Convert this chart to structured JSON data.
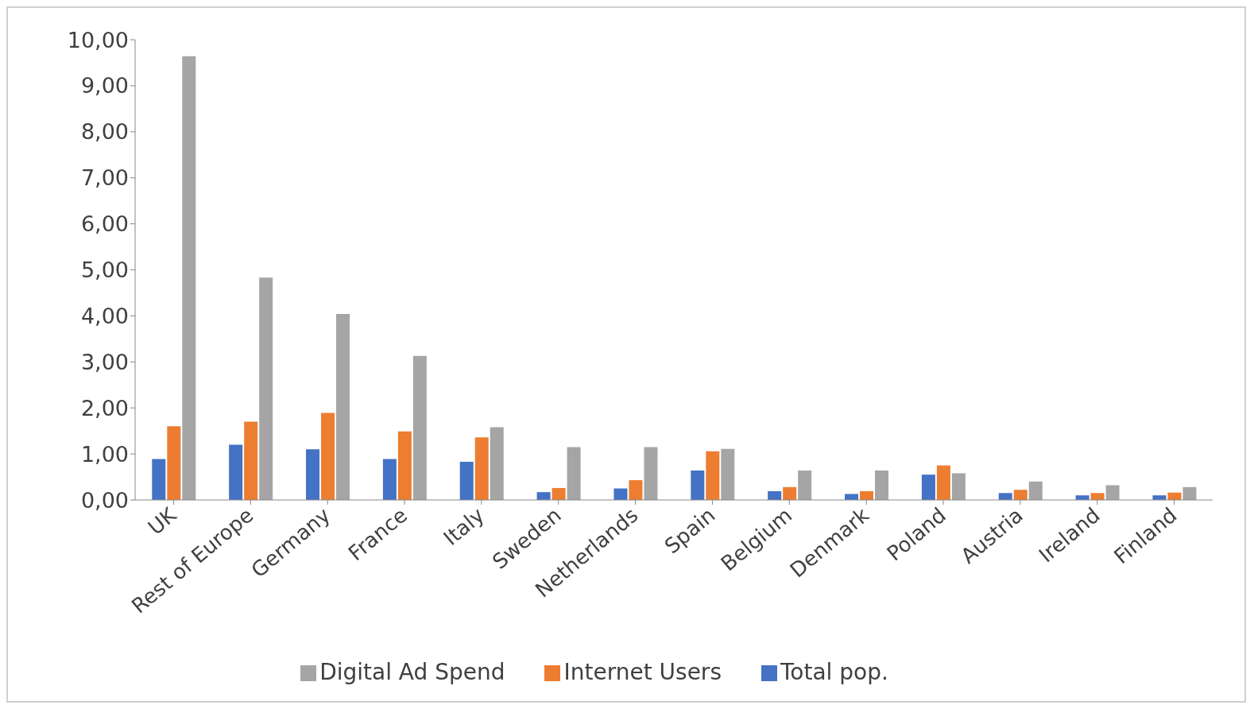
{
  "chart_data": {
    "type": "bar",
    "categories": [
      "UK",
      "Rest of Europe",
      "Germany",
      "France",
      "Italy",
      "Sweden",
      "Netherlands",
      "Spain",
      "Belgium",
      "Denmark",
      "Poland",
      "Austria",
      "Ireland",
      "Finland"
    ],
    "series": [
      {
        "name": "Total pop.",
        "color": "#4472c4",
        "values": [
          0.89,
          1.2,
          1.1,
          0.89,
          0.83,
          0.17,
          0.25,
          0.64,
          0.19,
          0.13,
          0.55,
          0.15,
          0.1,
          0.1
        ]
      },
      {
        "name": "Internet Users",
        "color": "#ed7d31",
        "values": [
          1.6,
          1.7,
          1.89,
          1.49,
          1.36,
          0.26,
          0.43,
          1.06,
          0.28,
          0.19,
          0.75,
          0.22,
          0.15,
          0.16
        ]
      },
      {
        "name": "Digital Ad Spend",
        "color": "#a5a5a5",
        "values": [
          9.64,
          4.83,
          4.04,
          3.13,
          1.58,
          1.15,
          1.15,
          1.11,
          0.64,
          0.64,
          0.58,
          0.4,
          0.32,
          0.28
        ]
      }
    ],
    "ylim": [
      0,
      10
    ],
    "yticks": [
      {
        "value": 0,
        "label": "0,00"
      },
      {
        "value": 1,
        "label": "1,00"
      },
      {
        "value": 2,
        "label": "2,00"
      },
      {
        "value": 3,
        "label": "3,00"
      },
      {
        "value": 4,
        "label": "4,00"
      },
      {
        "value": 5,
        "label": "5,00"
      },
      {
        "value": 6,
        "label": "6,00"
      },
      {
        "value": 7,
        "label": "7,00"
      },
      {
        "value": 8,
        "label": "8,00"
      },
      {
        "value": 9,
        "label": "9,00"
      },
      {
        "value": 10,
        "label": "10,00"
      }
    ],
    "grid": false,
    "legend": "bottom"
  }
}
